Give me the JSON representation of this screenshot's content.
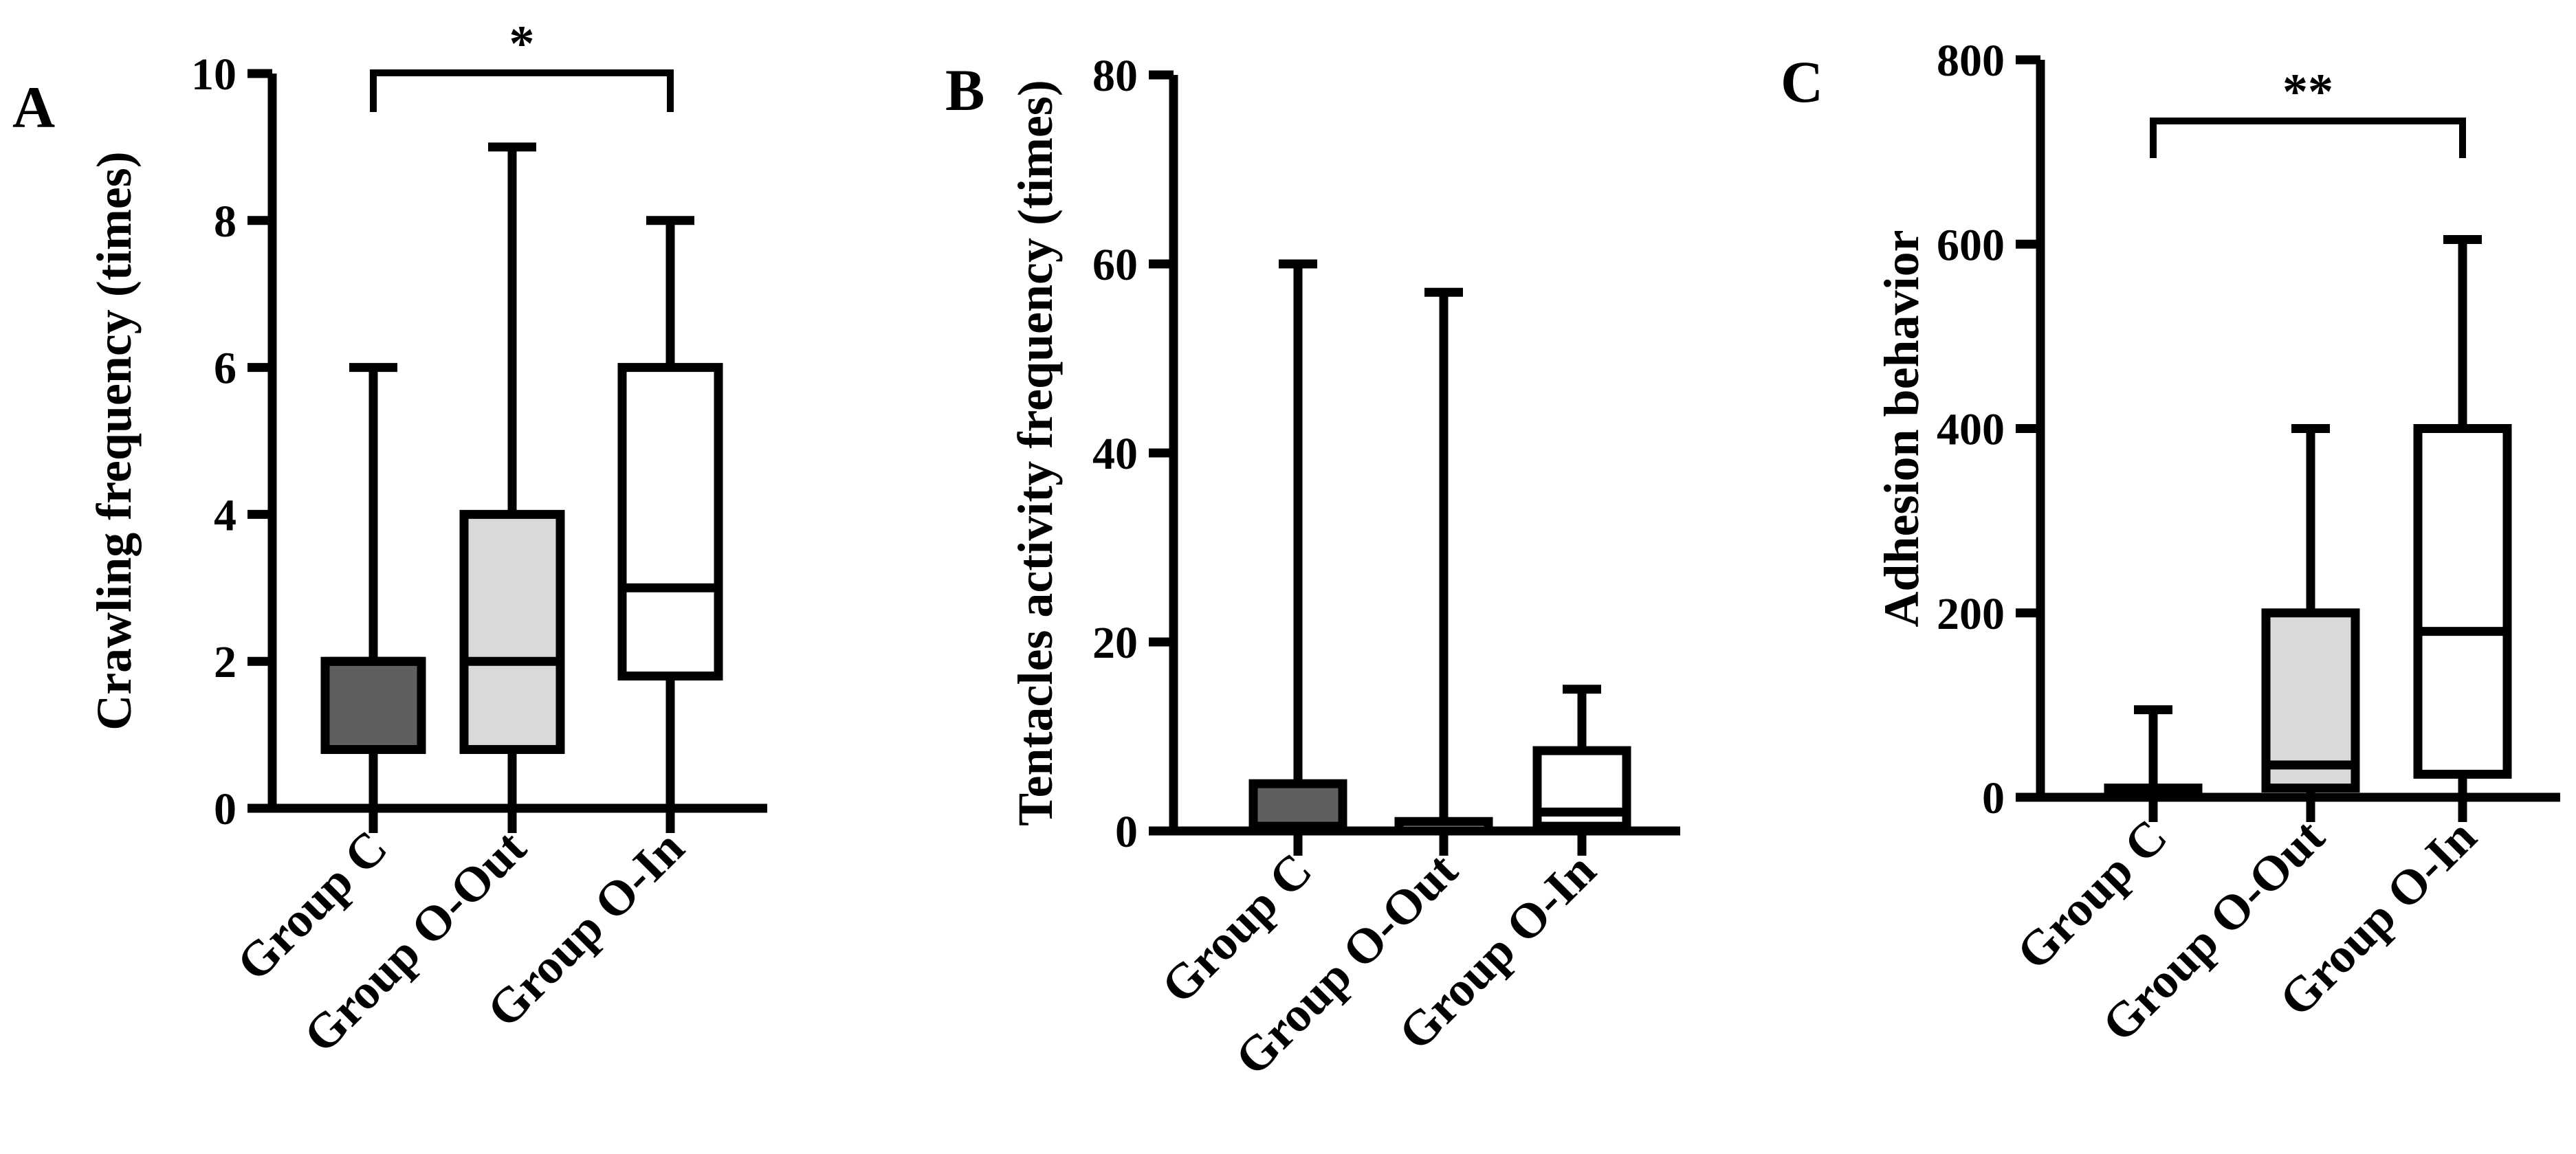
{
  "chart_data": [
    {
      "type": "box",
      "panel": "A",
      "ylabel": "Crawling frequency (times)",
      "ylim": [
        0,
        10
      ],
      "yticks": [
        0,
        2,
        4,
        6,
        8,
        10
      ],
      "categories": [
        "Group C",
        "Group O-Out",
        "Group O-In"
      ],
      "boxes": [
        {
          "name": "Group C",
          "min": 0,
          "q1": 0.8,
          "median": 2,
          "q3": 2,
          "max": 6,
          "fill": "#5f5f5f"
        },
        {
          "name": "Group O-Out",
          "min": 0,
          "q1": 0.8,
          "median": 2,
          "q3": 4,
          "max": 9,
          "fill": "#d9d9d9"
        },
        {
          "name": "Group O-In",
          "min": 0,
          "q1": 1.8,
          "median": 3,
          "q3": 6,
          "max": 8,
          "fill": "#ffffff"
        }
      ],
      "significance": [
        {
          "from": "Group C",
          "to": "Group O-In",
          "label": "*",
          "y": 10
        }
      ]
    },
    {
      "type": "box",
      "panel": "B",
      "ylabel": "Tentacles activity frequency (times)",
      "ylim": [
        0,
        80
      ],
      "yticks": [
        0,
        20,
        40,
        60,
        80
      ],
      "categories": [
        "Group C",
        "Group O-Out",
        "Group O-In"
      ],
      "boxes": [
        {
          "name": "Group C",
          "min": 0,
          "q1": 0,
          "median": 0.5,
          "q3": 5,
          "max": 60,
          "fill": "#5f5f5f"
        },
        {
          "name": "Group O-Out",
          "min": 0,
          "q1": 0,
          "median": 0,
          "q3": 1,
          "max": 57,
          "fill": "#d9d9d9"
        },
        {
          "name": "Group O-In",
          "min": 0,
          "q1": 0.5,
          "median": 2,
          "q3": 8.5,
          "max": 15,
          "fill": "#ffffff"
        }
      ],
      "significance": []
    },
    {
      "type": "box",
      "panel": "C",
      "ylabel": "Adhesion behavior",
      "ylim": [
        0,
        800
      ],
      "yticks": [
        0,
        200,
        400,
        600,
        800
      ],
      "categories": [
        "Group C",
        "Group O-Out",
        "Group O-In"
      ],
      "boxes": [
        {
          "name": "Group C",
          "min": 0,
          "q1": 0,
          "median": 5,
          "q3": 10,
          "max": 95,
          "fill": "#5f5f5f"
        },
        {
          "name": "Group O-Out",
          "min": 0,
          "q1": 10,
          "median": 35,
          "q3": 200,
          "max": 400,
          "fill": "#d9d9d9"
        },
        {
          "name": "Group O-In",
          "min": 0,
          "q1": 25,
          "median": 180,
          "q3": 400,
          "max": 605,
          "fill": "#ffffff"
        }
      ],
      "significance": [
        {
          "from": "Group C",
          "to": "Group O-In",
          "label": "**",
          "y": 735
        }
      ]
    }
  ]
}
